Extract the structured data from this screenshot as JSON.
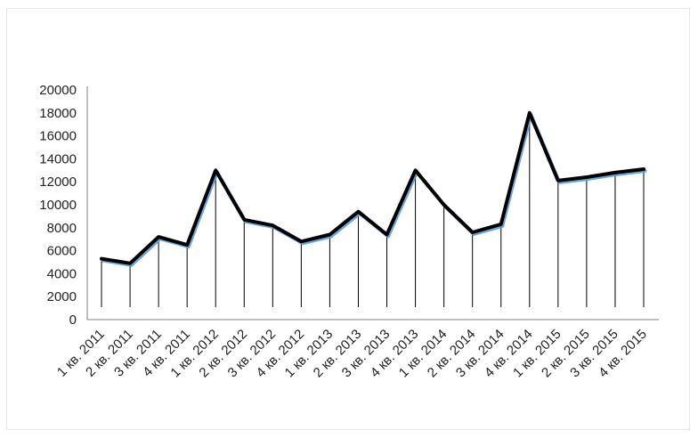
{
  "chart_data": {
    "type": "line",
    "title": "",
    "xlabel": "",
    "ylabel": "",
    "categories": [
      "1 кв. 2011",
      "2 кв. 2011",
      "3 кв. 2011",
      "4 кв. 2011",
      "1 кв. 2012",
      "2 кв. 2012",
      "3 кв. 2012",
      "4 кв. 2012",
      "1 кв. 2013",
      "2 кв. 2013",
      "3 кв. 2013",
      "4 кв. 2013",
      "1 кв. 2014",
      "2 кв. 2014",
      "3 кв. 2014",
      "4 кв. 2014",
      "1 кв. 2015",
      "2 кв. 2015",
      "3 кв. 2015",
      "4 кв. 2015"
    ],
    "series": [
      {
        "values": [
          5300,
          4900,
          7200,
          6500,
          13000,
          8700,
          8200,
          6800,
          7400,
          9400,
          7400,
          13000,
          10000,
          7600,
          8300,
          18000,
          12100,
          12400,
          12800,
          13100
        ]
      }
    ],
    "ylim": [
      0,
      20000
    ],
    "yticks": [
      0,
      2000,
      4000,
      6000,
      8000,
      10000,
      12000,
      14000,
      16000,
      18000,
      20000
    ],
    "grid": false,
    "drop_lines": true,
    "legend": "none",
    "colors": {
      "line": "#000000",
      "shadow": "#5b9bd5",
      "drop_line": "#000000",
      "axis": "#7f7f7f"
    }
  }
}
